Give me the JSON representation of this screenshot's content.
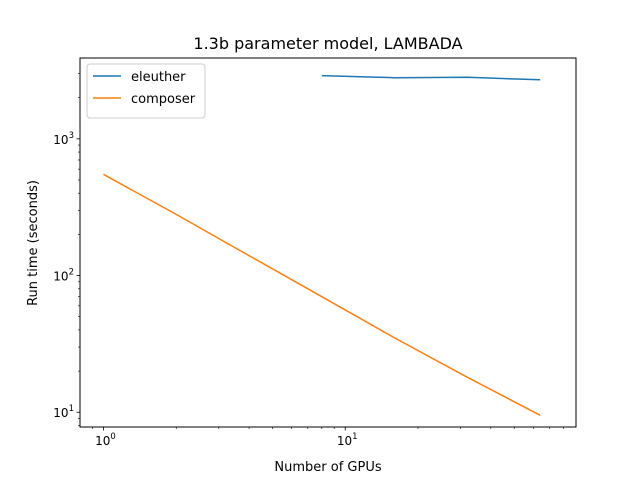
{
  "chart_data": {
    "type": "line",
    "title": "1.3b parameter model, LAMBADA",
    "xlabel": "Number of GPUs",
    "ylabel": "Run time (seconds)",
    "xscale": "log",
    "yscale": "log",
    "xlim": [
      0.8,
      90
    ],
    "ylim": [
      7.8,
      3900
    ],
    "x_ticks": [
      {
        "base": "10",
        "exp": "0",
        "value": 1
      },
      {
        "base": "10",
        "exp": "1",
        "value": 10
      }
    ],
    "y_ticks": [
      {
        "base": "10",
        "exp": "1",
        "value": 10
      },
      {
        "base": "10",
        "exp": "2",
        "value": 100
      },
      {
        "base": "10",
        "exp": "3",
        "value": 1000
      }
    ],
    "grid": false,
    "legend_position": "top-left",
    "series": [
      {
        "name": "eleuther",
        "color": "#1f77b4",
        "x": [
          8,
          16,
          32,
          64
        ],
        "y": [
          2900,
          2800,
          2820,
          2700
        ]
      },
      {
        "name": "composer",
        "color": "#ff7f0e",
        "x": [
          1,
          2,
          4,
          8,
          16,
          32,
          64
        ],
        "y": [
          550,
          280,
          140,
          70,
          35,
          18,
          9.5
        ]
      }
    ]
  }
}
